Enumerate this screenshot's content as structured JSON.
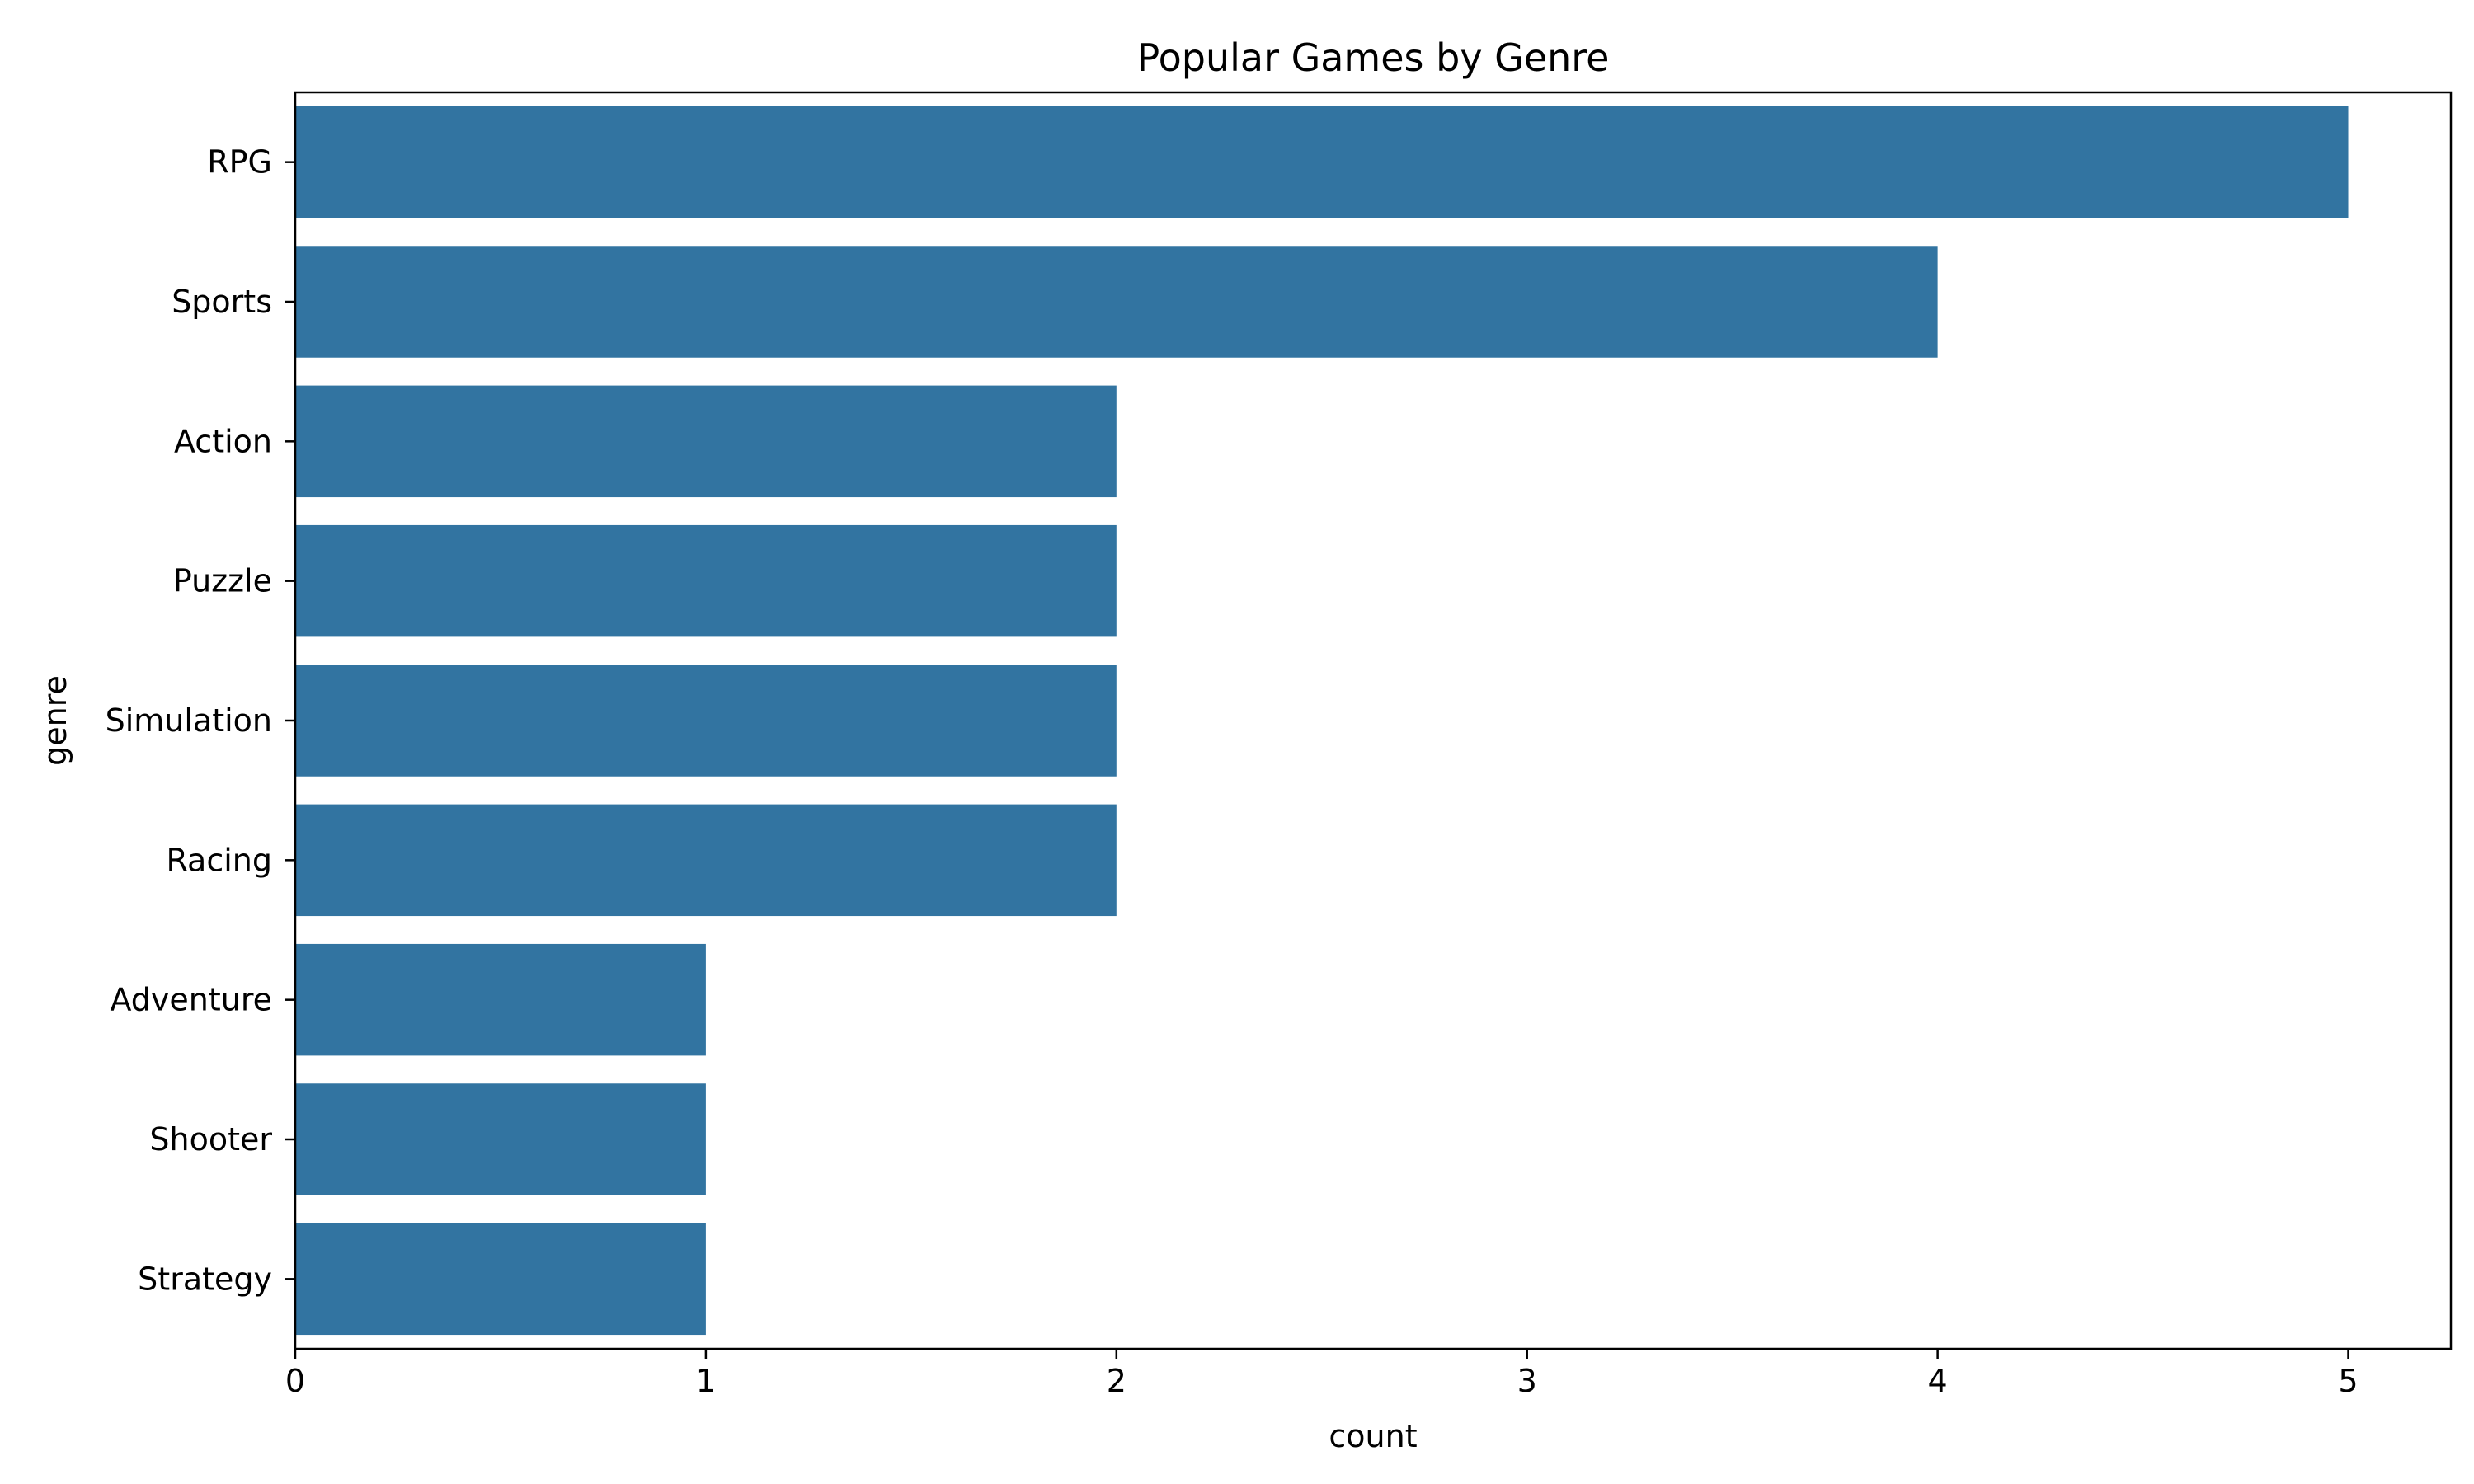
{
  "chart_data": {
    "type": "bar",
    "orientation": "horizontal",
    "title": "Popular Games by Genre",
    "xlabel": "count",
    "ylabel": "genre",
    "categories": [
      "RPG",
      "Sports",
      "Action",
      "Puzzle",
      "Simulation",
      "Racing",
      "Adventure",
      "Shooter",
      "Strategy"
    ],
    "values": [
      5,
      4,
      2,
      2,
      2,
      2,
      1,
      1,
      1
    ],
    "xlim": [
      0,
      5.25
    ],
    "xticks": [
      0,
      1,
      2,
      3,
      4,
      5
    ],
    "grid": false,
    "legend": "none",
    "bar_color": "#3274a1"
  }
}
